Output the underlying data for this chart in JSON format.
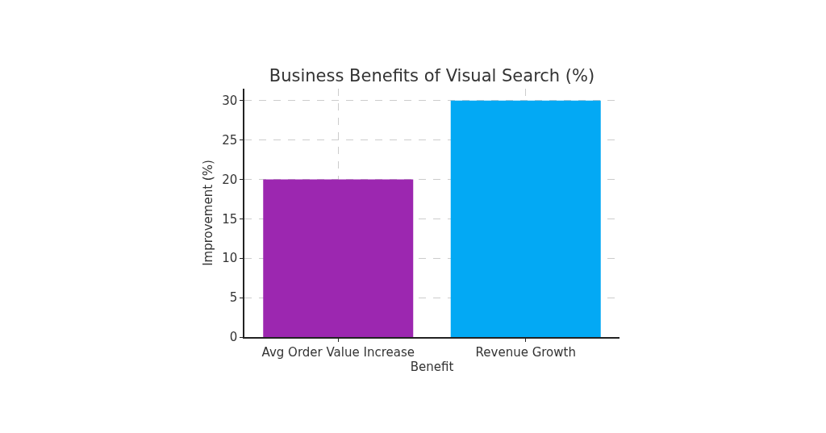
{
  "chart_data": {
    "type": "bar",
    "title": "Business Benefits of Visual Search (%)",
    "xlabel": "Benefit",
    "ylabel": "Improvement (%)",
    "categories": [
      "Avg Order Value Increase",
      "Revenue Growth"
    ],
    "values": [
      20,
      30
    ],
    "colors": [
      "#9c27b0",
      "#03a9f4"
    ],
    "ylim": [
      0,
      31.5
    ],
    "yticks": [
      0,
      5,
      10,
      15,
      20,
      25,
      30
    ],
    "grid": true
  }
}
